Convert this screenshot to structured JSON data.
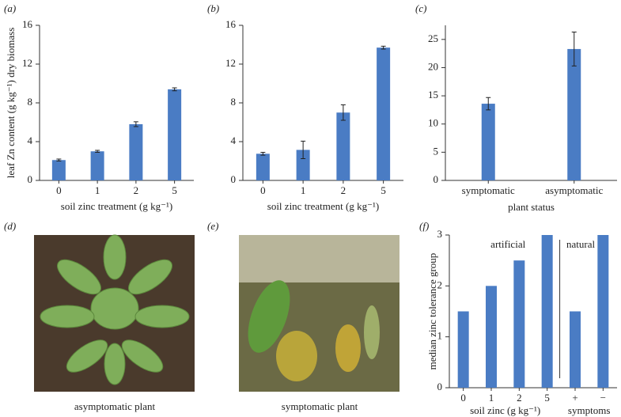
{
  "chart_data": [
    {
      "type": "bar",
      "panel_label": "(a)",
      "ylabel": "leaf Zn content (g kg⁻¹) dry biomass",
      "xlabel": "soil zinc treatment (g kg⁻¹)",
      "categories": [
        "0",
        "1",
        "2",
        "5"
      ],
      "values": [
        2.1,
        3.0,
        5.8,
        9.4
      ],
      "errors": [
        0.1,
        0.1,
        0.25,
        0.15
      ],
      "color": "#4a7cc4",
      "ylim": [
        0,
        16
      ],
      "yticks": [
        0,
        4,
        8,
        12,
        16
      ]
    },
    {
      "type": "bar",
      "panel_label": "(b)",
      "xlabel": "soil zinc treatment (g kg⁻¹)",
      "categories": [
        "0",
        "1",
        "2",
        "5"
      ],
      "values": [
        2.75,
        3.15,
        7.0,
        13.7
      ],
      "errors": [
        0.15,
        0.9,
        0.8,
        0.15
      ],
      "color": "#4a7cc4",
      "ylim": [
        0,
        16
      ],
      "yticks": [
        0,
        4,
        8,
        12,
        16
      ]
    },
    {
      "type": "bar",
      "panel_label": "(c)",
      "xlabel": "plant status",
      "categories": [
        "symptomatic",
        "asymptomatic"
      ],
      "values": [
        13.6,
        23.3
      ],
      "errors": [
        1.1,
        3.0
      ],
      "color": "#4a7cc4",
      "ylim": [
        0,
        27.5
      ],
      "yticks": [
        0,
        5,
        10,
        15,
        20,
        25
      ]
    },
    {
      "type": "bar",
      "panel_label": "(f)",
      "ylabel": "median zinc tolerance group",
      "xlabel": "soil zinc (g kg⁻¹)",
      "xlabel_2": "symptoms",
      "annotations": [
        "artificial",
        "natural"
      ],
      "categories": [
        "0",
        "1",
        "2",
        "5",
        "+",
        "−"
      ],
      "values": [
        1.5,
        2,
        2.5,
        3,
        1.5,
        3
      ],
      "color": "#4a7cc4",
      "ylim": [
        0,
        3
      ],
      "yticks": [
        0,
        1,
        2,
        3
      ]
    }
  ],
  "photos": [
    {
      "panel_label": "(d)",
      "caption": "asymptomatic plant"
    },
    {
      "panel_label": "(e)",
      "caption": "symptomatic plant"
    }
  ]
}
